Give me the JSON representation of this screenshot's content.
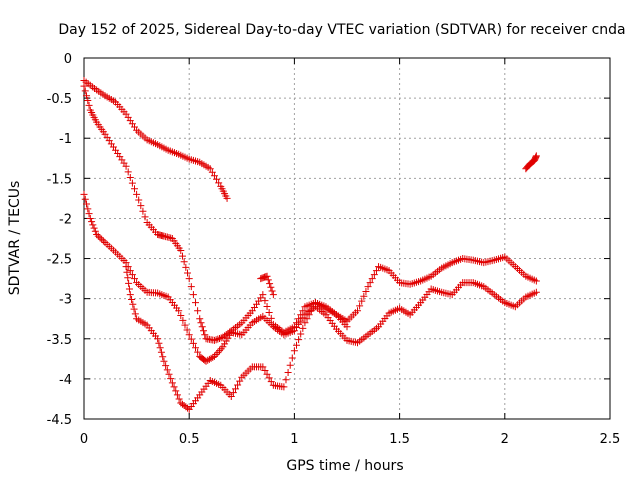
{
  "chart_data": {
    "type": "scatter",
    "title": "Day 152 of 2025, Sidereal Day-to-day VTEC variation (SDTVAR) for receiver cnda",
    "xlabel": "GPS time / hours",
    "ylabel": "SDTVAR / TECUs",
    "xlim": [
      0,
      2.5
    ],
    "ylim": [
      -4.5,
      0
    ],
    "xticks": [
      "0",
      "0.5",
      "1",
      "1.5",
      "2",
      "2.5"
    ],
    "yticks": [
      "0",
      "-0.5",
      "-1",
      "-1.5",
      "-2",
      "-2.5",
      "-3",
      "-3.5",
      "-4",
      "-4.5"
    ],
    "xtick_values": [
      0,
      0.5,
      1,
      1.5,
      2,
      2.5
    ],
    "ytick_values": [
      0,
      -0.5,
      -1,
      -1.5,
      -2,
      -2.5,
      -3,
      -3.5,
      -4,
      -4.5
    ],
    "grid": true,
    "marker": "plus",
    "color": "#e00000",
    "series": [
      {
        "x": [
          0,
          0.05,
          0.1,
          0.15,
          0.2,
          0.25,
          0.3,
          0.35,
          0.4,
          0.45,
          0.5,
          0.55,
          0.6,
          0.65,
          0.68
        ],
        "y": [
          -0.28,
          -0.38,
          -0.47,
          -0.55,
          -0.7,
          -0.9,
          -1.02,
          -1.08,
          -1.15,
          -1.2,
          -1.26,
          -1.3,
          -1.38,
          -1.6,
          -1.75
        ]
      },
      {
        "x": [
          0,
          0.03,
          0.06,
          0.1,
          0.15,
          0.2,
          0.25,
          0.3,
          0.35,
          0.38,
          0.42,
          0.46,
          0.5,
          0.55,
          0.58,
          0.62,
          0.66,
          0.7,
          0.75,
          0.8,
          0.85,
          0.9,
          0.95,
          1.0,
          1.05,
          1.1,
          1.15,
          1.2,
          1.25,
          1.3,
          1.35,
          1.4,
          1.45,
          1.5,
          1.55,
          1.6,
          1.65,
          1.7,
          1.75,
          1.8,
          1.85,
          1.9,
          1.95,
          2.0,
          2.05,
          2.1,
          2.15
        ],
        "y": [
          -0.35,
          -0.65,
          -0.8,
          -0.95,
          -1.15,
          -1.35,
          -1.7,
          -2.05,
          -2.2,
          -2.22,
          -2.25,
          -2.4,
          -2.75,
          -3.25,
          -3.5,
          -3.52,
          -3.48,
          -3.4,
          -3.3,
          -3.15,
          -2.95,
          -3.32,
          -3.42,
          -3.35,
          -3.1,
          -3.05,
          -3.1,
          -3.2,
          -3.28,
          -3.15,
          -2.85,
          -2.6,
          -2.65,
          -2.8,
          -2.82,
          -2.78,
          -2.72,
          -2.62,
          -2.55,
          -2.5,
          -2.52,
          -2.55,
          -2.52,
          -2.48,
          -2.6,
          -2.72,
          -2.78
        ]
      },
      {
        "x": [
          0,
          0.03,
          0.06,
          0.1,
          0.15,
          0.2,
          0.25,
          0.3,
          0.35,
          0.4,
          0.45,
          0.5,
          0.55,
          0.58,
          0.62,
          0.66,
          0.7,
          0.75,
          0.8,
          0.85,
          0.9,
          0.95,
          1.0,
          1.05,
          1.1,
          1.15,
          1.2,
          1.25,
          1.3,
          1.35,
          1.4,
          1.45,
          1.5,
          1.55,
          1.6,
          1.65,
          1.7,
          1.75,
          1.8,
          1.85,
          1.9,
          1.95,
          2.0,
          2.05,
          2.1,
          2.15
        ],
        "y": [
          -1.7,
          -2.0,
          -2.2,
          -2.3,
          -2.42,
          -2.55,
          -2.8,
          -2.92,
          -2.93,
          -2.98,
          -3.15,
          -3.45,
          -3.72,
          -3.78,
          -3.72,
          -3.6,
          -3.42,
          -3.45,
          -3.3,
          -3.22,
          -3.35,
          -3.45,
          -3.4,
          -3.2,
          -3.1,
          -3.2,
          -3.38,
          -3.52,
          -3.55,
          -3.45,
          -3.35,
          -3.18,
          -3.12,
          -3.2,
          -3.05,
          -2.88,
          -2.92,
          -2.95,
          -2.8,
          -2.8,
          -2.85,
          -2.95,
          -3.05,
          -3.1,
          -2.98,
          -2.92
        ]
      },
      {
        "x": [
          0.2,
          0.22,
          0.25,
          0.3,
          0.35,
          0.38,
          0.42,
          0.46,
          0.5,
          0.55,
          0.6,
          0.65,
          0.7,
          0.75,
          0.8,
          0.85,
          0.9,
          0.95,
          1.0,
          1.05,
          1.1,
          1.15,
          1.2,
          1.25
        ],
        "y": [
          -2.6,
          -2.95,
          -3.25,
          -3.33,
          -3.5,
          -3.78,
          -4.05,
          -4.3,
          -4.38,
          -4.2,
          -4.02,
          -4.08,
          -4.22,
          -3.98,
          -3.85,
          -3.85,
          -4.08,
          -4.1,
          -3.65,
          -3.3,
          -3.05,
          -3.12,
          -3.2,
          -3.35
        ]
      },
      {
        "x": [
          0.84,
          0.87,
          0.9
        ],
        "y": [
          -2.75,
          -2.72,
          -2.95
        ]
      },
      {
        "x": [
          2.1,
          2.12,
          2.14,
          2.15
        ],
        "y": [
          -1.38,
          -1.32,
          -1.28,
          -1.22
        ]
      }
    ]
  }
}
